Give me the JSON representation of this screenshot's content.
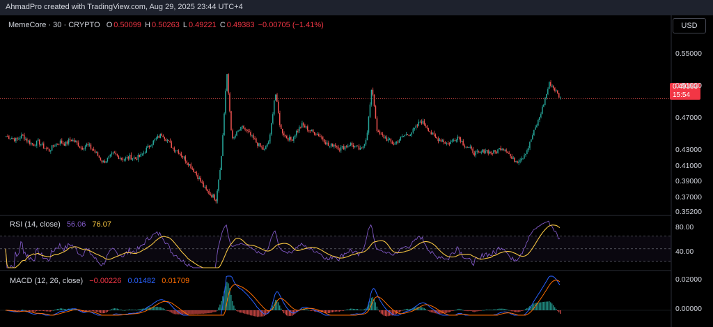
{
  "header": {
    "caption": "AhmadPro created with TradingView.com, Aug 29, 2025 23:44 UTC+4"
  },
  "main_pane": {
    "symbol": "MemeCore · 30 · CRYPTO",
    "o_label": "O",
    "o_value": "0.50099",
    "h_label": "H",
    "h_value": "0.50263",
    "l_label": "L",
    "l_value": "0.49221",
    "c_label": "C",
    "c_value": "0.49383",
    "change": "−0.00705 (−1.41%)",
    "currency_button": "USD",
    "price_ticks": [
      "0.55000",
      "0.51000",
      "0.47000",
      "0.43000",
      "0.41000",
      "0.39000",
      "0.37000",
      "0.35200"
    ],
    "last_price": "0.49383",
    "countdown": "15:54"
  },
  "rsi_pane": {
    "title": "RSI (14, close)",
    "rsi_value": "56.06",
    "ma_value": "76.07",
    "ticks": [
      "80.00",
      "40.00"
    ]
  },
  "macd_pane": {
    "title": "MACD (12, 26, close)",
    "hist_value": "−0.00226",
    "macd_value": "0.01482",
    "signal_value": "0.01709",
    "ticks": [
      "0.02000",
      "0.00000"
    ]
  },
  "colors": {
    "up": "#26a69a",
    "down": "#ef5350",
    "rsi_line": "#7e57c2",
    "rsi_ma": "#f5c542",
    "macd_line": "#2962ff",
    "signal_line": "#ff6d00",
    "macd_value": "#2962ff",
    "signal_value": "#ff6d00",
    "rsi_value": "#7e57c2",
    "ma_value": "#f5c542"
  },
  "chart_data": [
    {
      "type": "candlestick",
      "title": "MemeCore · 30 · CRYPTO",
      "ylim": [
        0.352,
        0.565
      ],
      "close_path": [
        0.447,
        0.445,
        0.442,
        0.448,
        0.441,
        0.436,
        0.44,
        0.433,
        0.429,
        0.436,
        0.44,
        0.437,
        0.443,
        0.439,
        0.432,
        0.436,
        0.431,
        0.423,
        0.414,
        0.419,
        0.425,
        0.421,
        0.418,
        0.421,
        0.419,
        0.422,
        0.43,
        0.438,
        0.444,
        0.45,
        0.441,
        0.432,
        0.428,
        0.42,
        0.412,
        0.403,
        0.392,
        0.38,
        0.374,
        0.368,
        0.42,
        0.526,
        0.441,
        0.452,
        0.458,
        0.451,
        0.443,
        0.435,
        0.429,
        0.444,
        0.503,
        0.456,
        0.446,
        0.442,
        0.453,
        0.461,
        0.456,
        0.452,
        0.449,
        0.443,
        0.434,
        0.437,
        0.431,
        0.434,
        0.437,
        0.433,
        0.429,
        0.446,
        0.509,
        0.451,
        0.447,
        0.442,
        0.437,
        0.442,
        0.448,
        0.45,
        0.456,
        0.466,
        0.461,
        0.45,
        0.444,
        0.442,
        0.437,
        0.441,
        0.447,
        0.437,
        0.432,
        0.426,
        0.425,
        0.43,
        0.426,
        0.427,
        0.433,
        0.43,
        0.418,
        0.416,
        0.421,
        0.432,
        0.451,
        0.468,
        0.49,
        0.514,
        0.505,
        0.494
      ],
      "rsi": {
        "ylim": [
          20,
          95
        ],
        "ma_value": 76.07,
        "last": 56.06
      },
      "macd": {
        "ylim": [
          -0.003,
          0.021
        ],
        "macd_last": 0.01482,
        "signal_last": 0.01709,
        "hist_last": -0.00226
      }
    }
  ]
}
